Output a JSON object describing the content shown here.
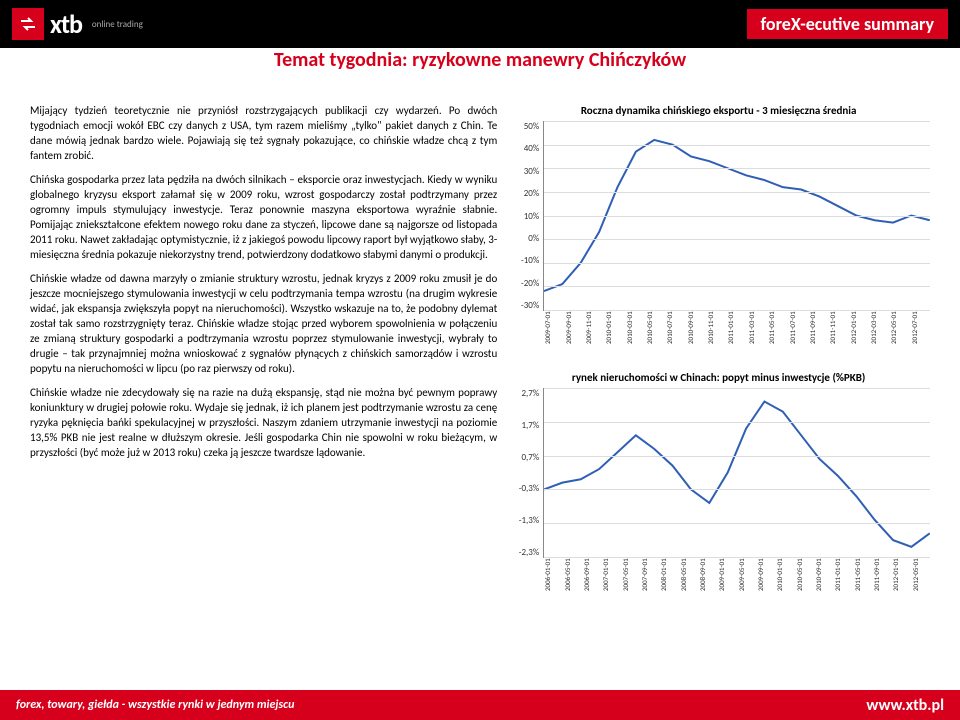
{
  "header": {
    "logo_text": "xtb",
    "logo_sub": "online trading",
    "summary": "foreX-ecutive summary"
  },
  "title": "Temat tygodnia: ryzykowne manewry Chińczyków",
  "paragraphs": {
    "p1": "Mijający tydzień teoretycznie nie przyniósł rozstrzygających publikacji czy wydarzeń. Po dwóch tygodniach emocji wokół EBC czy danych z USA, tym razem mieliśmy „tylko\" pakiet danych z Chin. Te dane mówią jednak bardzo wiele. Pojawiają się też sygnały pokazujące, co chińskie władze chcą z tym fantem zrobić.",
    "p2": "Chińska gospodarka przez lata pędziła na dwóch silnikach – eksporcie oraz inwestycjach. Kiedy w wyniku globalnego kryzysu eksport załamał się w 2009 roku, wzrost gospodarczy został podtrzymany przez ogromny impuls stymulujący inwestycje. Teraz ponownie maszyna eksportowa wyraźnie słabnie. Pomijając zniekształcone efektem nowego roku dane za styczeń, lipcowe dane są najgorsze od listopada 2011 roku. Nawet zakładając optymistycznie, iż z jakiegoś powodu lipcowy raport był wyjątkowo słaby, 3-miesięczna średnia pokazuje niekorzystny trend, potwierdzony dodatkowo słabymi danymi o produkcji.",
    "p3": "Chińskie władze od dawna marzyły o zmianie struktury wzrostu, jednak kryzys z 2009 roku zmusił je do jeszcze mocniejszego stymulowania inwestycji w celu podtrzymania tempa wzrostu (na drugim wykresie widać, jak ekspansja zwiększyła popyt na nieruchomości). Wszystko wskazuje na to, że podobny dylemat został tak samo rozstrzygnięty teraz. Chińskie władze stojąc przed wyborem spowolnienia w połączeniu ze zmianą struktury gospodarki a podtrzymania wzrostu poprzez stymulowanie inwestycji, wybrały to drugie – tak przynajmniej można wnioskować z sygnałów płynących z chińskich samorządów i wzrostu popytu na nieruchomości w lipcu (po raz pierwszy od roku).",
    "p4": "Chińskie władze nie zdecydowały się na razie na dużą ekspansję, stąd nie można być pewnym poprawy koniunktury w drugiej połowie roku. Wydaje się jednak, iż ich planem jest podtrzymanie wzrostu za cenę ryzyka pęknięcia bańki spekulacyjnej w przyszłości. Naszym zdaniem utrzymanie inwestycji na poziomie 13,5% PKB nie jest realne w dłuższym okresie. Jeśli gospodarka Chin nie spowolni w roku bieżącym, w przyszłości (być może już w 2013 roku) czeka ją jeszcze twardsze lądowanie."
  },
  "chart1": {
    "title": "Roczna dynamika chińskiego eksportu - 3 miesięczna średnia",
    "type": "line",
    "line_color": "#2f5fb5",
    "line_width": 2,
    "grid_color": "#dddddd",
    "ylim": [
      -30,
      50
    ],
    "yticks": [
      "50%",
      "40%",
      "30%",
      "20%",
      "10%",
      "0%",
      "-10%",
      "-20%",
      "-30%"
    ],
    "xticks": [
      "2009-07-01",
      "2009-09-01",
      "2009-11-01",
      "2010-01-01",
      "2010-03-01",
      "2010-05-01",
      "2010-07-01",
      "2010-09-01",
      "2010-11-01",
      "2011-01-01",
      "2011-03-01",
      "2011-05-01",
      "2011-07-01",
      "2011-09-01",
      "2011-11-01",
      "2012-01-01",
      "2012-03-01",
      "2012-05-01",
      "2012-07-01"
    ],
    "values": [
      -22,
      -19,
      -10,
      3,
      22,
      37,
      42,
      40,
      35,
      33,
      30,
      27,
      25,
      22,
      21,
      18,
      14,
      10,
      8,
      7,
      10,
      8
    ]
  },
  "chart2": {
    "title": "rynek nieruchomości w Chinach: popyt minus inwestycje (%PKB)",
    "type": "line",
    "line_color": "#2f5fb5",
    "line_width": 2,
    "grid_color": "#dddddd",
    "ylim": [
      -2.3,
      2.7
    ],
    "yticks": [
      "2,7%",
      "1,7%",
      "0,7%",
      "-0,3%",
      "-1,3%",
      "-2,3%"
    ],
    "xticks": [
      "2006-01-01",
      "2006-05-01",
      "2006-09-01",
      "2007-01-01",
      "2007-05-01",
      "2007-09-01",
      "2008-01-01",
      "2008-05-01",
      "2008-09-01",
      "2009-01-01",
      "2009-05-01",
      "2009-09-01",
      "2010-01-01",
      "2010-05-01",
      "2010-09-01",
      "2011-01-01",
      "2011-05-01",
      "2011-09-01",
      "2012-01-01",
      "2012-05-01"
    ],
    "values": [
      -0.3,
      -0.1,
      0.0,
      0.3,
      0.8,
      1.3,
      0.9,
      0.4,
      -0.3,
      -0.7,
      0.2,
      1.5,
      2.3,
      2.0,
      1.3,
      0.6,
      0.1,
      -0.5,
      -1.2,
      -1.8,
      -2.0,
      -1.6
    ]
  },
  "footer": {
    "tagline": "forex, towary, giełda - wszystkie rynki w jednym miejscu",
    "url": "www.xtb.pl"
  }
}
